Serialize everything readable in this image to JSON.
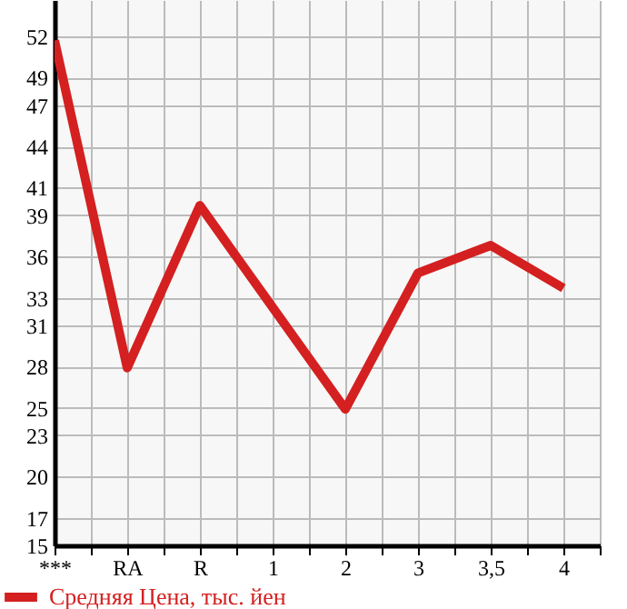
{
  "chart_data": {
    "type": "line",
    "categories": [
      "***",
      "RA",
      "R",
      "1",
      "2",
      "3",
      "3,5",
      "4"
    ],
    "series": [
      {
        "name": "Средняя Цена, тыс. йен",
        "color": "#d42020",
        "values": [
          51.7,
          27.9,
          39.7,
          32.3,
          24.9,
          34.8,
          36.8,
          33.7
        ]
      }
    ],
    "ylim": [
      15,
      54.64
    ],
    "yticks": [
      15,
      17,
      20,
      23,
      25,
      28,
      31,
      33,
      36,
      39,
      41,
      44,
      47,
      49,
      52
    ],
    "grid": true,
    "legend": "bottom left",
    "marker": "none",
    "line_style": "solid"
  }
}
